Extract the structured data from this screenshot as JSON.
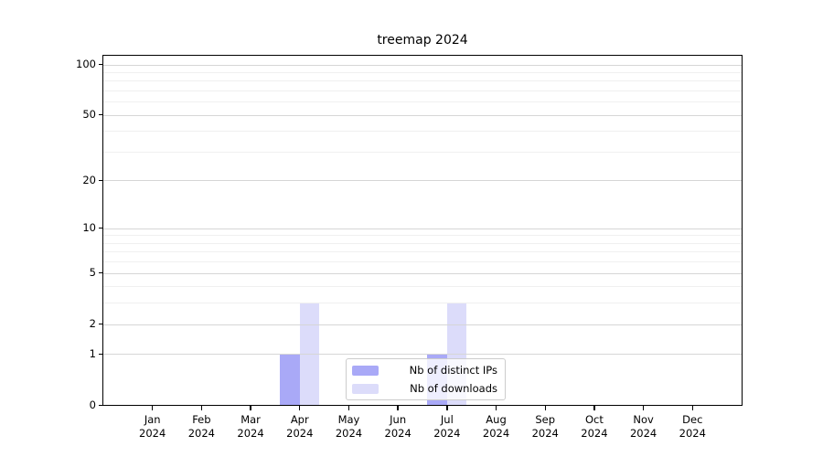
{
  "chart_data": {
    "type": "bar",
    "title": "treemap 2024",
    "categories": [
      "Jan 2024",
      "Feb 2024",
      "Mar 2024",
      "Apr 2024",
      "May 2024",
      "Jun 2024",
      "Jul 2024",
      "Aug 2024",
      "Sep 2024",
      "Oct 2024",
      "Nov 2024",
      "Dec 2024"
    ],
    "series": [
      {
        "name": "Nb of distinct IPs",
        "color": "#a9a9f7",
        "values": [
          0,
          0,
          0,
          1,
          0,
          0,
          1,
          0,
          0,
          0,
          0,
          0
        ]
      },
      {
        "name": "Nb of downloads",
        "color": "#dcdcfa",
        "values": [
          0,
          0,
          0,
          3,
          0,
          0,
          3,
          0,
          0,
          0,
          0,
          0
        ]
      }
    ],
    "xlabel": "",
    "ylabel": "",
    "yscale": "log1p",
    "ylim": [
      0,
      112
    ],
    "yticks_major": [
      0,
      1,
      2,
      5,
      10,
      20,
      50,
      100
    ],
    "yticks_minor": [
      3,
      4,
      6,
      7,
      8,
      9,
      30,
      40,
      60,
      70,
      80,
      90
    ],
    "grid": "horizontal",
    "grid_major_color": "#d6d6d6",
    "grid_minor_color": "#f0f0f0",
    "legend_position": "lower-center",
    "legend_border_color": "#cccccc",
    "axis_color": "#000000",
    "background_color": "#ffffff"
  }
}
